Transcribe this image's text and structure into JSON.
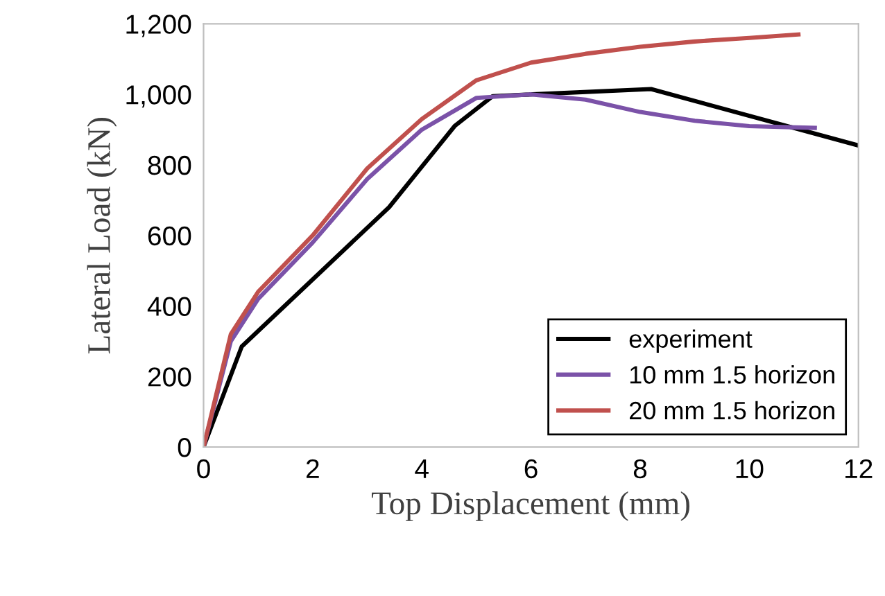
{
  "chart_data": {
    "type": "line",
    "xlabel": "Top Displacement (mm)",
    "ylabel": "Lateral Load (kN)",
    "xlim": [
      0,
      12
    ],
    "xticks": [
      0,
      2,
      4,
      6,
      8,
      10,
      12
    ],
    "ylim": [
      0,
      1200
    ],
    "yticks": [
      0,
      200,
      400,
      600,
      800,
      {
        "value": 1000,
        "label": "1,000"
      },
      {
        "value": 1200,
        "label": "1,200"
      }
    ],
    "grid": false,
    "legend": "bottom right",
    "marker": "none",
    "line_style": "solid",
    "series": [
      {
        "name": "experiment",
        "color": "#000000",
        "x": [
          0,
          0.7,
          3.4,
          4.6,
          5.3,
          8.2,
          12
        ],
        "values": [
          0,
          285,
          680,
          910,
          995,
          1015,
          855
        ]
      },
      {
        "name": "10 mm 1.5 horizon",
        "color": "#7b52a8",
        "x": [
          0,
          0.5,
          1,
          2,
          3,
          4,
          5,
          6,
          7,
          8,
          9,
          10,
          11.2
        ],
        "values": [
          0,
          300,
          420,
          580,
          760,
          900,
          990,
          1000,
          985,
          950,
          925,
          910,
          905
        ]
      },
      {
        "name": "20 mm 1.5 horizon",
        "color": "#c0504d",
        "x": [
          0,
          0.5,
          1,
          2,
          3,
          4,
          5,
          6,
          7,
          8,
          9,
          10,
          10.9
        ],
        "values": [
          0,
          320,
          440,
          600,
          790,
          930,
          1040,
          1090,
          1115,
          1135,
          1150,
          1160,
          1170
        ]
      }
    ]
  }
}
